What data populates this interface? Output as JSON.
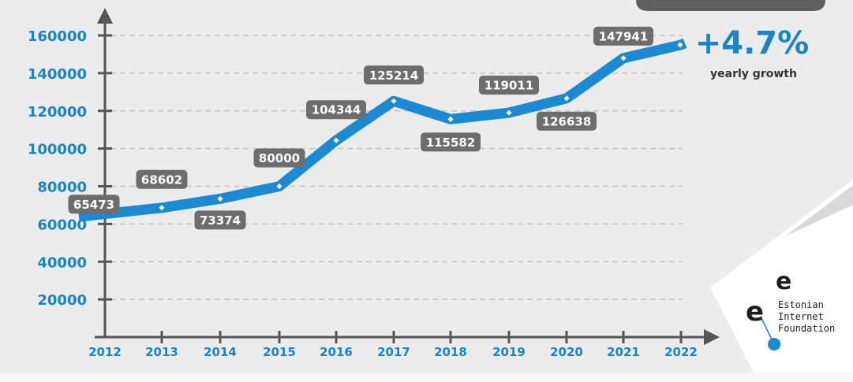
{
  "chart_data": {
    "type": "line",
    "x": [
      "2012",
      "2013",
      "2014",
      "2015",
      "2016",
      "2017",
      "2018",
      "2019",
      "2020",
      "2021",
      "2022"
    ],
    "series": [
      {
        "values": [
          65473,
          68602,
          73374,
          80000,
          104344,
          125214,
          115582,
          119011,
          126638,
          147941,
          155000
        ]
      }
    ],
    "data_labels": [
      "65473",
      "68602",
      "73374",
      "80000",
      "104344",
      "125214",
      "115582",
      "119011",
      "126638",
      "147941"
    ],
    "y_ticks": [
      20000,
      40000,
      60000,
      80000,
      100000,
      120000,
      140000,
      160000
    ],
    "ylim": [
      0,
      170000
    ],
    "grid": true,
    "line_color": "#1a8ad4",
    "label_box_color": "#6d6d6d"
  },
  "growth": {
    "value": "+4.7%",
    "label": "yearly growth"
  },
  "logo": {
    "lines": [
      "Estonian",
      "Internet",
      "Foundation"
    ]
  },
  "colors": {
    "accent": "#1585cc",
    "background": "#ececec"
  }
}
